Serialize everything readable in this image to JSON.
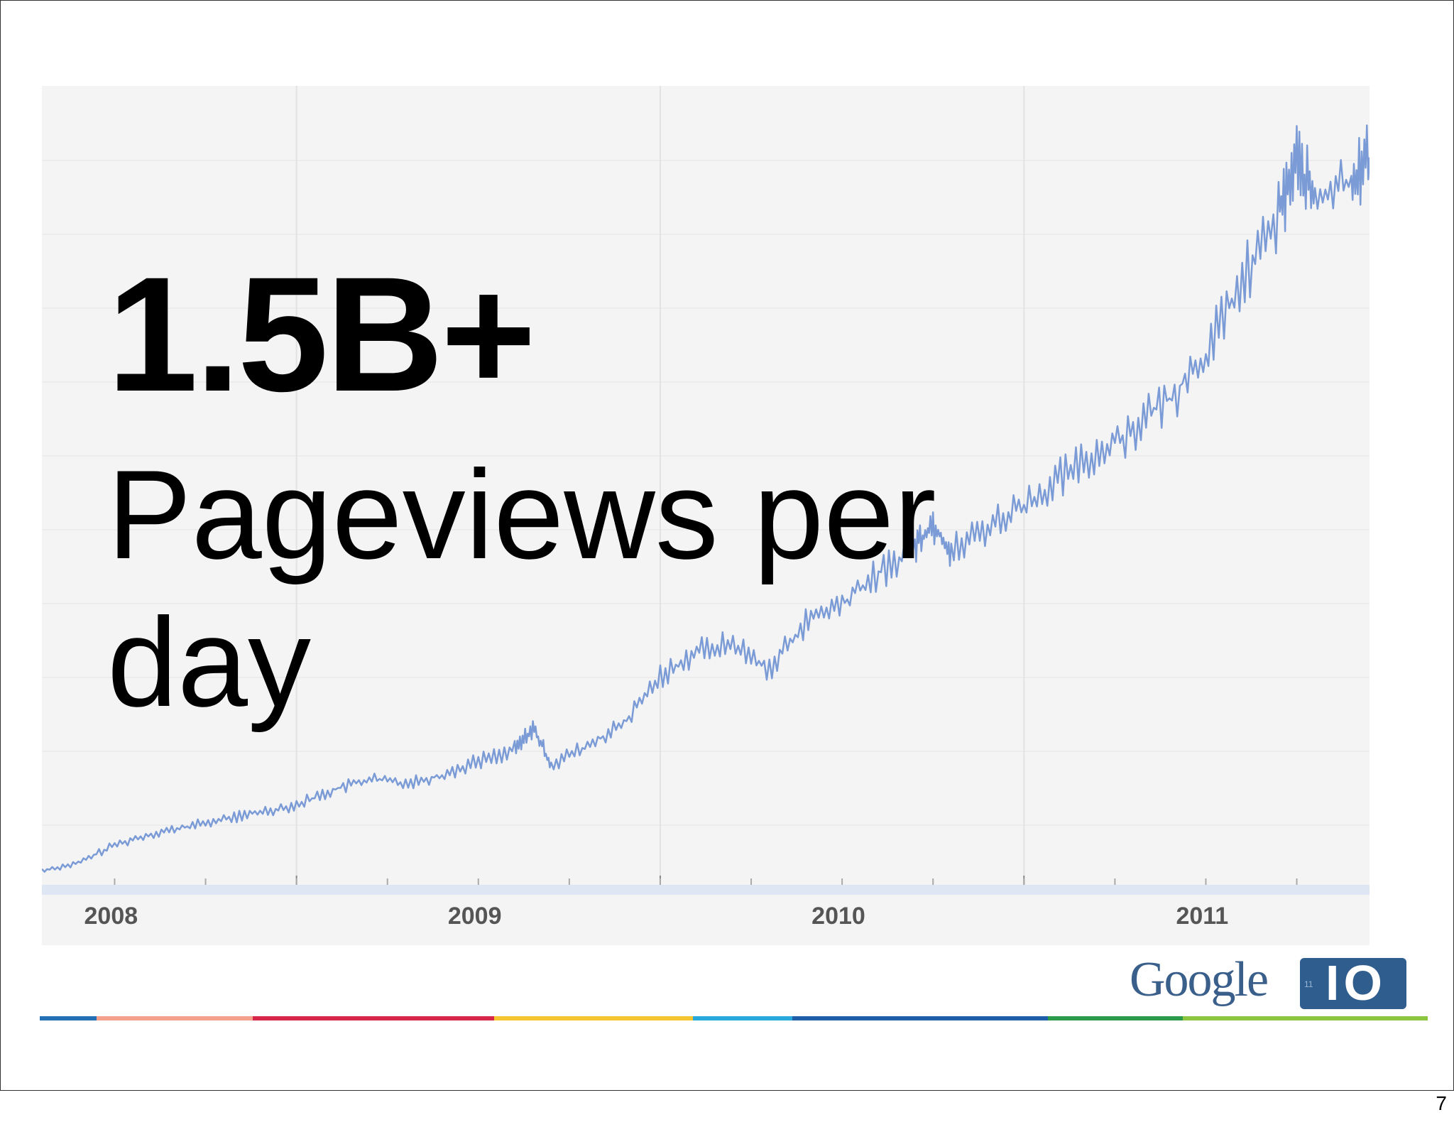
{
  "slide": {
    "headline_number": "1.5B+",
    "headline_caption_line1": "Pageviews per",
    "headline_caption_line2": "day",
    "page_number": "7"
  },
  "logo": {
    "word": "Google",
    "badge_text": "IO",
    "badge_year": "11",
    "word_color": "#3a5f8a",
    "badge_color": "#2f5d8e"
  },
  "footer_stripe_colors": [
    "#2470b5",
    "#f4a08a",
    "#d8264a",
    "#f7c531",
    "#29a8dc",
    "#1f5ea8",
    "#2b9a4a",
    "#8cc63f"
  ],
  "chart_data": {
    "type": "line",
    "title": "",
    "xlabel": "",
    "ylabel": "",
    "grid": true,
    "x_tick_labels": [
      "2008",
      "2009",
      "2010",
      "2011"
    ],
    "x_range": [
      2007.9,
      2011.55
    ],
    "y_range": [
      0,
      100
    ],
    "line_color": "#7b9bd6",
    "series": [
      {
        "x": [
          2007.9,
          2008.0,
          2008.1,
          2008.2,
          2008.3,
          2008.4,
          2008.5,
          2008.6,
          2008.7,
          2008.8,
          2008.9,
          2009.0,
          2009.1,
          2009.2,
          2009.25,
          2009.3,
          2009.4,
          2009.5,
          2009.6,
          2009.7,
          2009.8,
          2009.9,
          2010.0,
          2010.1,
          2010.2,
          2010.3,
          2010.35,
          2010.4,
          2010.5,
          2010.6,
          2010.7,
          2010.8,
          2010.9,
          2011.0,
          2011.1,
          2011.2,
          2011.3,
          2011.35,
          2011.4,
          2011.5,
          2011.55
        ],
        "y": [
          0.5,
          1.5,
          4,
          5.5,
          6.5,
          7.5,
          8.5,
          9.5,
          11.5,
          13,
          12.5,
          13.5,
          15.5,
          17,
          20,
          15,
          17.5,
          20.5,
          27,
          30.5,
          31.5,
          28,
          34.5,
          37,
          41,
          45,
          48,
          44,
          47.5,
          50.5,
          54,
          57.5,
          61,
          65,
          71,
          81,
          90,
          98,
          92,
          95,
          98
        ]
      }
    ]
  }
}
